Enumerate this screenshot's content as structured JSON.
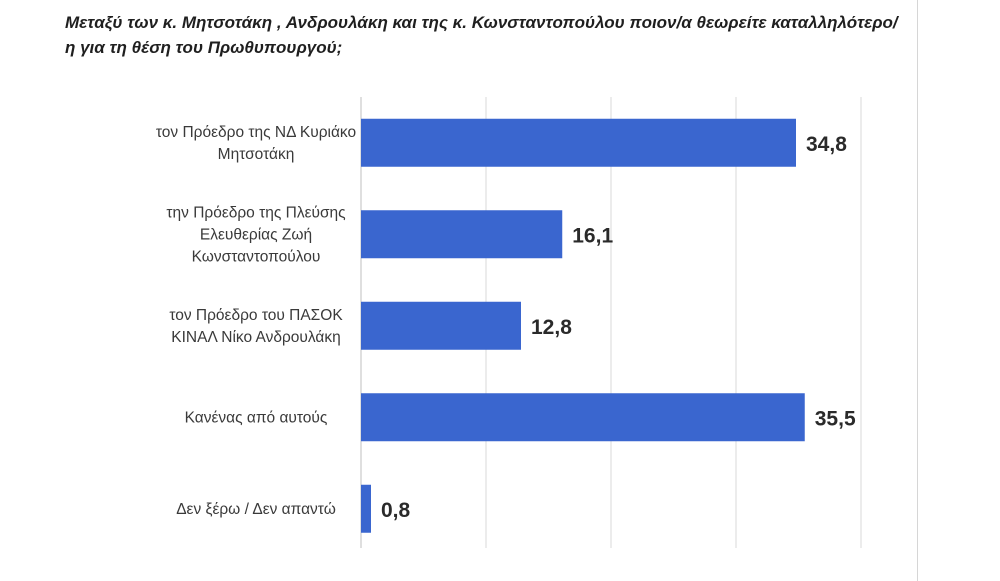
{
  "chart_data": {
    "type": "bar",
    "orientation": "horizontal",
    "title": "Μεταξύ των κ. Μητσοτάκη , Ανδρουλάκη και της κ. Κωνσταντοπούλου ποιον/α θεωρείτε καταλληλότερο/η για τη θέση του Πρωθυπουργού;",
    "categories": [
      [
        "τον Πρόεδρο της ΝΔ Κυριάκο",
        "Μητσοτάκη"
      ],
      [
        "την Πρόεδρο της Πλεύσης",
        "Ελευθερίας Ζωή",
        "Κωνσταντοπούλου"
      ],
      [
        "τον Πρόεδρο του ΠΑΣΟΚ",
        "ΚΙΝΑΛ Νίκο Ανδρουλάκη"
      ],
      [
        "Κανένας από αυτούς"
      ],
      [
        "Δεν ξέρω / Δεν απαντώ"
      ]
    ],
    "values": [
      34.8,
      16.1,
      12.8,
      35.5,
      0.8
    ],
    "value_labels": [
      "34,8",
      "16,1",
      "12,8",
      "35,5",
      "0,8"
    ],
    "xlim": [
      0,
      40
    ],
    "grid": true,
    "bar_color": "#3a66cf"
  }
}
